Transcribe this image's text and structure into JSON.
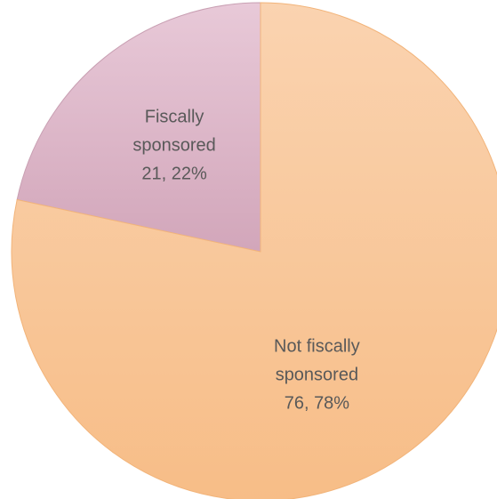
{
  "chart_data": {
    "type": "pie",
    "title": "",
    "start_angle": "12 o'clock",
    "direction": "counterclockwise",
    "slices": [
      {
        "category": "Fiscally sponsored",
        "label_lines": [
          "Fiscally",
          "sponsored",
          "21, 22%"
        ],
        "value": 21,
        "percent": 22,
        "color": "#dcb3c6"
      },
      {
        "category": "Not fiscally sponsored",
        "label_lines": [
          "Not fiscally",
          "sponsored",
          "76, 78%"
        ],
        "value": 76,
        "percent": 78,
        "color": "#f8c495"
      }
    ]
  }
}
